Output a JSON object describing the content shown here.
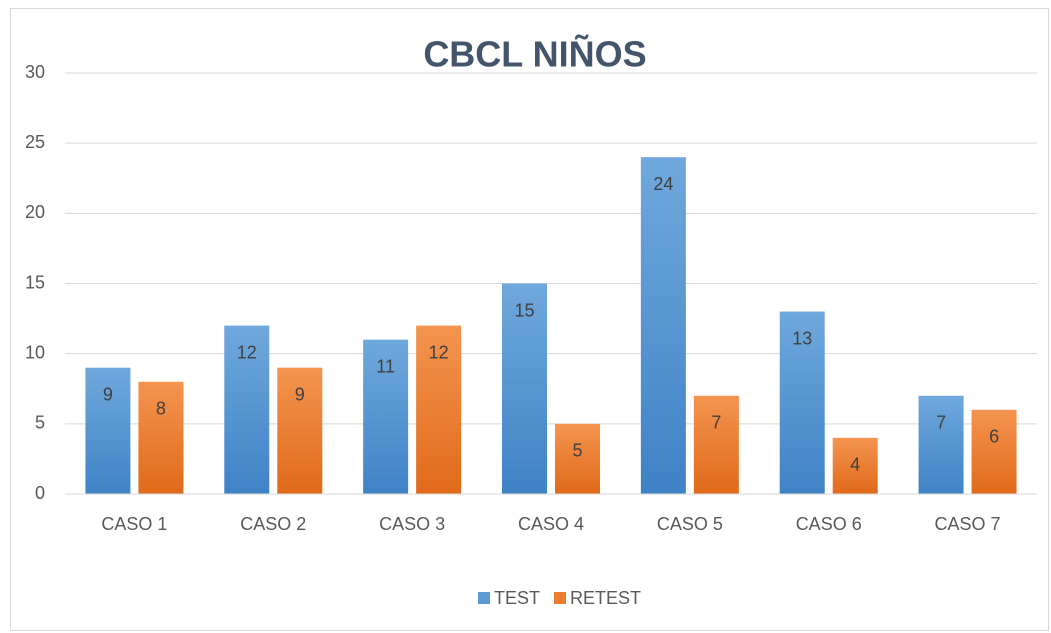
{
  "chart_data": {
    "type": "bar",
    "title": "CBCL NIÑOS",
    "categories": [
      "CASO 1",
      "CASO 2",
      "CASO 3",
      "CASO 4",
      "CASO 5",
      "CASO 6",
      "CASO 7"
    ],
    "series": [
      {
        "name": "TEST",
        "color": "#5b9bd5",
        "values": [
          9,
          12,
          11,
          15,
          24,
          13,
          7
        ]
      },
      {
        "name": "RETEST",
        "color": "#ed7d31",
        "values": [
          8,
          9,
          12,
          5,
          7,
          4,
          6
        ]
      }
    ],
    "ylim": [
      0,
      30
    ],
    "yticks": [
      0,
      5,
      10,
      15,
      20,
      25,
      30
    ],
    "grid": true,
    "legend": "bottom"
  }
}
